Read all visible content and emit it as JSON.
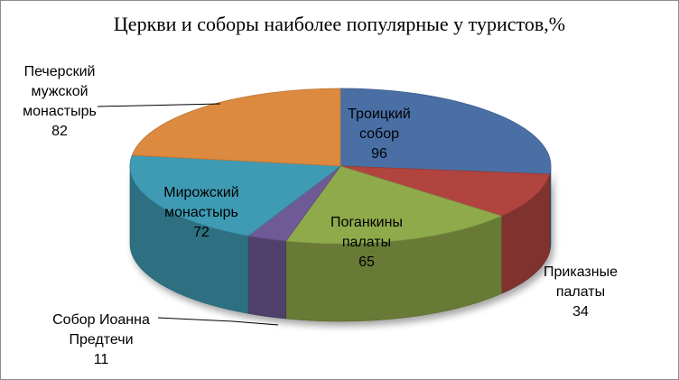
{
  "chart_data": {
    "type": "pie",
    "title": "Церкви и соборы наиболее популярные  у туристов,%",
    "slices": [
      {
        "name_lines": [
          "Троицкий",
          "собор"
        ],
        "value": 96,
        "color": "#4a6fa5"
      },
      {
        "name_lines": [
          "Приказные",
          "палаты"
        ],
        "value": 34,
        "color": "#b1443f"
      },
      {
        "name_lines": [
          "Поганкины",
          "палаты"
        ],
        "value": 65,
        "color": "#8faa4b"
      },
      {
        "name_lines": [
          "Собор Иоанна",
          "Предтечи"
        ],
        "value": 11,
        "color": "#6e5a96"
      },
      {
        "name_lines": [
          "Мирожский",
          "монастырь"
        ],
        "value": 72,
        "color": "#3f9bb4"
      },
      {
        "name_lines": [
          "Печерский",
          "мужской",
          "монастырь"
        ],
        "value": 82,
        "color": "#db8a3f"
      }
    ]
  }
}
